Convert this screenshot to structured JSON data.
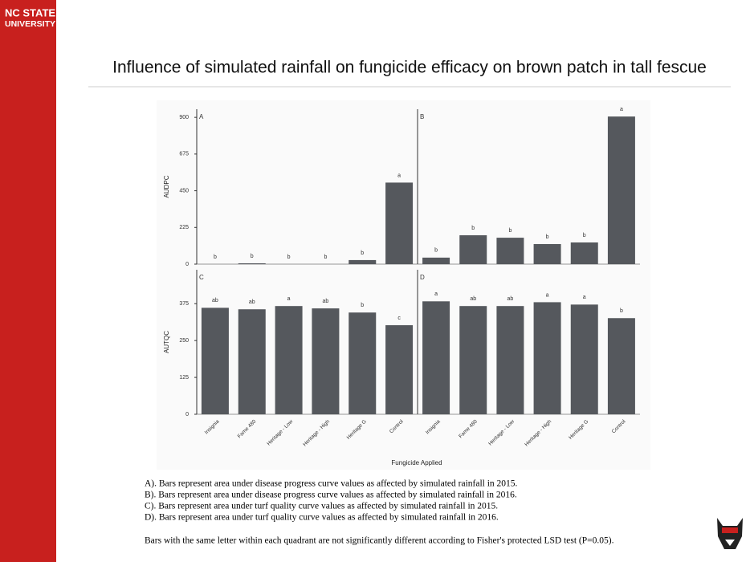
{
  "header": {
    "brand_line1": "NC STATE",
    "brand_line2": "UNIVERSITY",
    "title": "Influence of simulated rainfall on fungicide efficacy on brown patch in tall fescue"
  },
  "figure": {
    "xlabel": "Fungicide Applied"
  },
  "chart_data": [
    {
      "type": "bar",
      "panel": "A",
      "ylabel": "AUDPC",
      "ylim": [
        0,
        950
      ],
      "yticks": [
        0,
        225,
        450,
        675,
        900
      ],
      "color": "#55585d",
      "values": [
        0,
        5,
        0,
        0,
        25,
        500
      ],
      "letters": [
        "b",
        "b",
        "b",
        "b",
        "b",
        "a"
      ]
    },
    {
      "type": "bar",
      "panel": "B",
      "ylim": [
        0,
        950
      ],
      "color": "#55585d",
      "values": [
        40,
        177,
        162,
        123,
        133,
        905
      ],
      "letters": [
        "b",
        "b",
        "b",
        "b",
        "b",
        "a"
      ]
    },
    {
      "type": "bar",
      "panel": "C",
      "ylabel": "AUTQC",
      "ylim": [
        0,
        490
      ],
      "yticks": [
        0,
        125,
        250,
        375
      ],
      "color": "#55585d",
      "categories": [
        "Insignia",
        "Fame 480",
        "Heritage - Low",
        "Heritage - High",
        "Heritage G",
        "Control"
      ],
      "values": [
        361,
        356,
        367,
        359,
        345,
        302
      ],
      "letters": [
        "ab",
        "ab",
        "a",
        "ab",
        "b",
        "c"
      ]
    },
    {
      "type": "bar",
      "panel": "D",
      "ylim": [
        0,
        490
      ],
      "color": "#55585d",
      "categories": [
        "Insignia",
        "Fame 480",
        "Heritage - Low",
        "Heritage - High",
        "Heritage G",
        "Control"
      ],
      "values": [
        383,
        367,
        367,
        380,
        372,
        326
      ],
      "letters": [
        "a",
        "ab",
        "ab",
        "a",
        "a",
        "b"
      ]
    }
  ],
  "captions": [
    "A). Bars represent area under disease progress curve values as affected by simulated rainfall in 2015.",
    "B). Bars represent area under disease progress curve values as affected by simulated rainfall in 2016.",
    "C). Bars represent area under turf quality curve values as affected by simulated rainfall in 2015.",
    "D). Bars represent area under turf quality curve values as affected by simulated rainfall in 2016.",
    "Bars with the same letter within each quadrant are not significantly different according to Fisher's protected LSD test (P=0.05)."
  ]
}
